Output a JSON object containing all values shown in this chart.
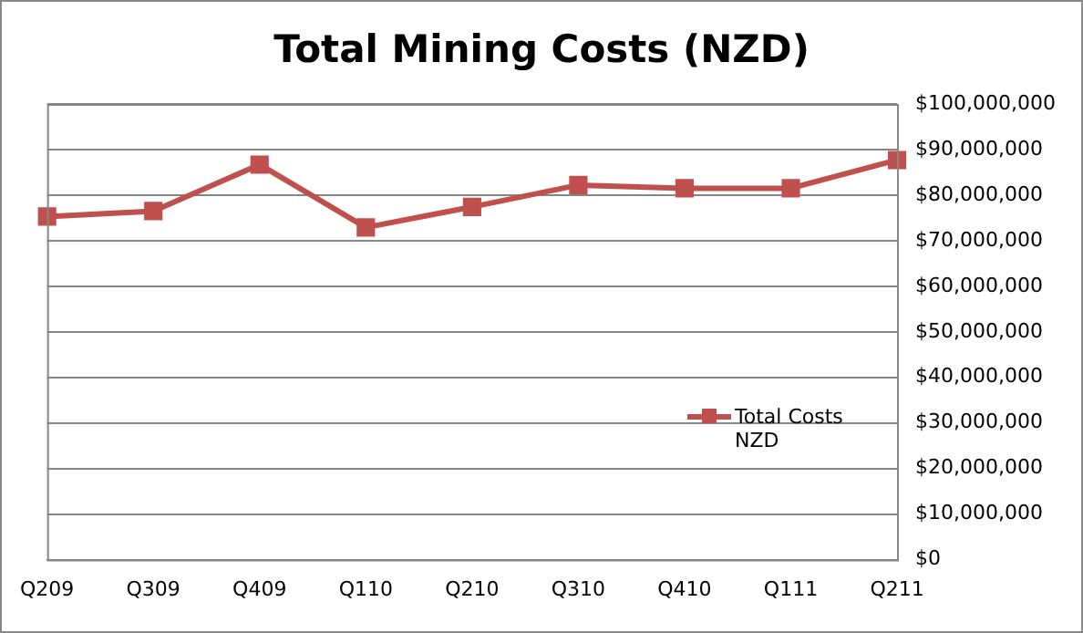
{
  "chart_data": {
    "type": "line",
    "title": "Total Mining Costs (NZD)",
    "categories": [
      "Q209",
      "Q309",
      "Q409",
      "Q110",
      "Q210",
      "Q310",
      "Q410",
      "Q111",
      "Q211"
    ],
    "series": [
      {
        "name": "Total Costs NZD",
        "color": "#c0504d",
        "values": [
          75300000,
          76500000,
          86700000,
          72900000,
          77400000,
          82200000,
          81500000,
          81500000,
          87700000
        ]
      }
    ],
    "ylim": [
      0,
      100000000
    ],
    "yticks": [
      {
        "value": 0,
        "label": "$0"
      },
      {
        "value": 10000000,
        "label": "$10,000,000"
      },
      {
        "value": 20000000,
        "label": "$20,000,000"
      },
      {
        "value": 30000000,
        "label": "$30,000,000"
      },
      {
        "value": 40000000,
        "label": "$40,000,000"
      },
      {
        "value": 50000000,
        "label": "$50,000,000"
      },
      {
        "value": 60000000,
        "label": "$60,000,000"
      },
      {
        "value": 70000000,
        "label": "$70,000,000"
      },
      {
        "value": 80000000,
        "label": "$80,000,000"
      },
      {
        "value": 90000000,
        "label": "$90,000,000"
      },
      {
        "value": 100000000,
        "label": "$100,000,000"
      }
    ],
    "grid": "y",
    "legend": "right",
    "marker": "square",
    "line_style": "solid"
  }
}
